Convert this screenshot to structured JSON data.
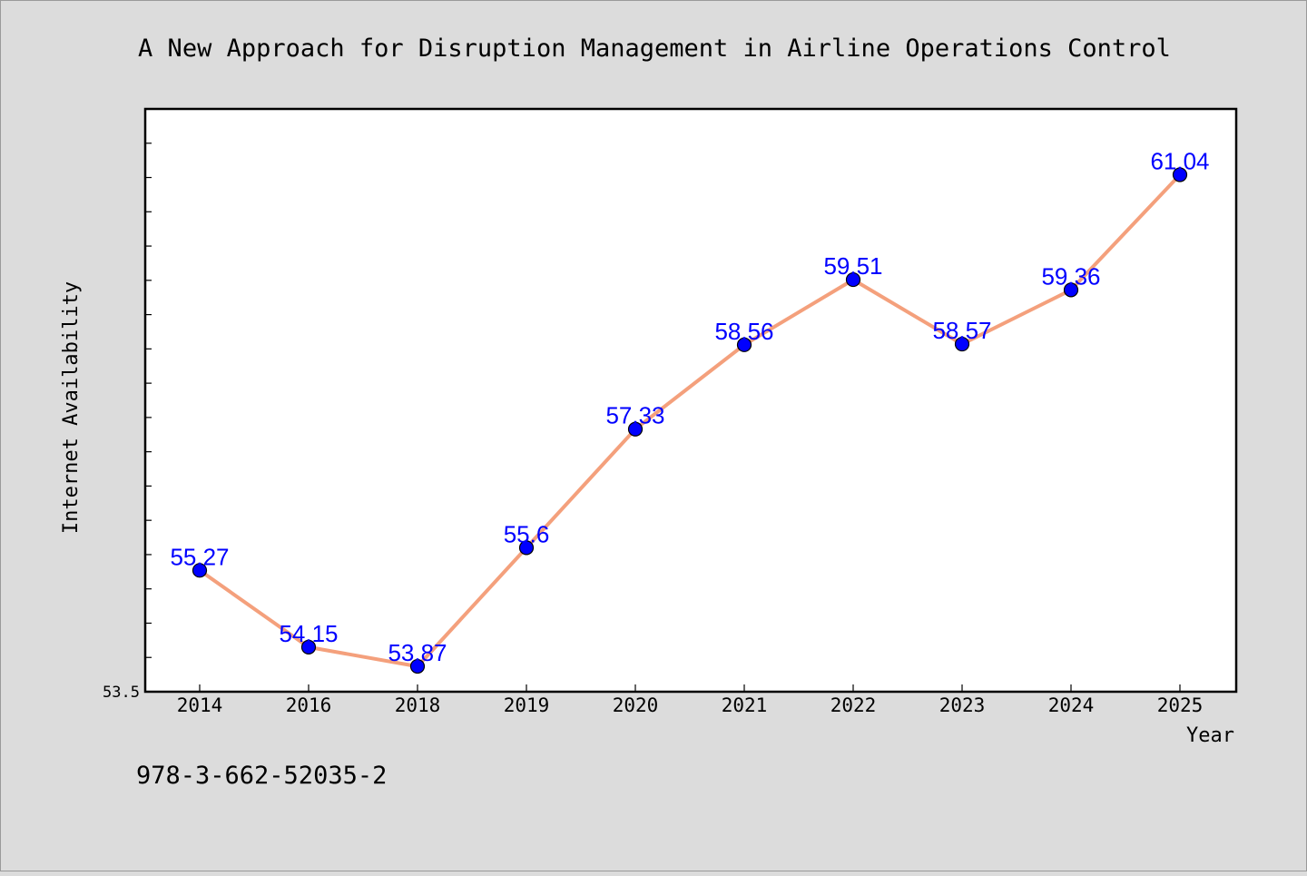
{
  "chart_data": {
    "type": "line",
    "title": "A New Approach for Disruption Management in Airline Operations Control",
    "xlabel": "Year",
    "ylabel": "Internet Availability",
    "categories": [
      "2014",
      "2016",
      "2018",
      "2019",
      "2020",
      "2021",
      "2022",
      "2023",
      "2024",
      "2025"
    ],
    "series": [
      {
        "values": [
          55.27,
          54.15,
          53.87,
          55.6,
          57.33,
          58.56,
          59.51,
          58.57,
          59.36,
          61.04
        ],
        "labels": [
          "55.27",
          "54.15",
          "53.87",
          "55.6",
          "57.33",
          "58.56",
          "59.51",
          "58.57",
          "59.36",
          "61.04"
        ]
      }
    ],
    "ylim": [
      53.5,
      62.0
    ],
    "yticks_labeled": [
      "53.5"
    ],
    "grid": false,
    "colors": {
      "line": "#f4a07c",
      "marker": "#0000ff",
      "label": "#0000ff",
      "plot_background": "#ffffff",
      "figure_background": "#dcdcdc"
    }
  },
  "footnote": "978-3-662-52035-2"
}
